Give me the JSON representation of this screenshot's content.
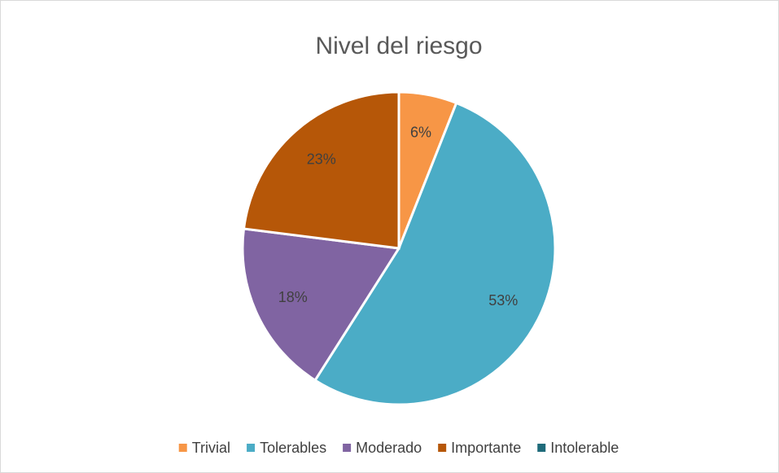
{
  "chart_data": {
    "type": "pie",
    "title": "Nivel del riesgo",
    "categories": [
      "Trivial",
      "Tolerables",
      "Moderado",
      "Importante",
      "Intolerable"
    ],
    "values": [
      6,
      53,
      18,
      23,
      0
    ],
    "value_labels": [
      "6%",
      "53%",
      "18%",
      "23%",
      null
    ],
    "colors": [
      "#f79646",
      "#4bacc6",
      "#8064a2",
      "#b65708",
      "#1f6b7a"
    ],
    "legend": "bottom"
  }
}
